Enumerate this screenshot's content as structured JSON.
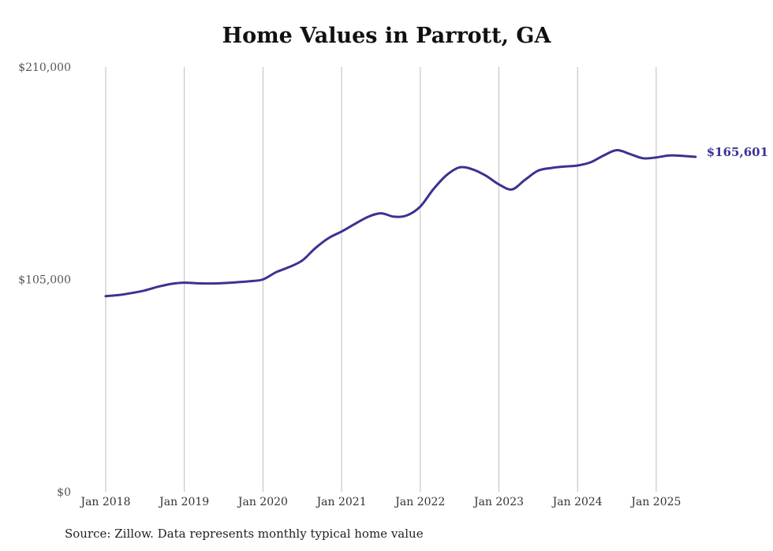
{
  "chart_data": {
    "type": "line",
    "title": "Home Values in Parrott, GA",
    "xlabel": "",
    "ylabel": "",
    "ylim": [
      0,
      210000
    ],
    "y_ticks": [
      {
        "value": 0,
        "label": "$0"
      },
      {
        "value": 105000,
        "label": "$105,000"
      },
      {
        "value": 210000,
        "label": "$210,000"
      }
    ],
    "x_ticks": [
      "Jan 2018",
      "Jan 2019",
      "Jan 2020",
      "Jan 2021",
      "Jan 2022",
      "Jan 2023",
      "Jan 2024",
      "Jan 2025"
    ],
    "grid": "vertical",
    "series": [
      {
        "color": "#3a3391",
        "x": [
          "2018-01",
          "2018-03",
          "2018-05",
          "2018-07",
          "2018-09",
          "2018-11",
          "2019-01",
          "2019-03",
          "2019-05",
          "2019-07",
          "2019-09",
          "2019-11",
          "2020-01",
          "2020-03",
          "2020-05",
          "2020-07",
          "2020-09",
          "2020-11",
          "2021-01",
          "2021-03",
          "2021-05",
          "2021-07",
          "2021-09",
          "2021-11",
          "2022-01",
          "2022-03",
          "2022-05",
          "2022-07",
          "2022-09",
          "2022-11",
          "2023-01",
          "2023-03",
          "2023-05",
          "2023-07",
          "2023-09",
          "2023-11",
          "2024-01",
          "2024-03",
          "2024-05",
          "2024-07",
          "2024-09",
          "2024-11",
          "2025-01",
          "2025-03",
          "2025-05",
          "2025-07"
        ],
        "values": [
          96700,
          97300,
          98300,
          99600,
          101400,
          102800,
          103400,
          103100,
          103000,
          103200,
          103600,
          104100,
          105000,
          108600,
          111100,
          114400,
          120500,
          125400,
          128700,
          132400,
          135900,
          137700,
          136000,
          136700,
          141000,
          149600,
          156500,
          160400,
          159400,
          156300,
          152000,
          149500,
          154300,
          158800,
          160100,
          160800,
          161300,
          162900,
          166300,
          168900,
          167000,
          164900,
          165300,
          166300,
          166100,
          165601
        ]
      }
    ],
    "end_label": "$165,601"
  },
  "source_note": "Source: Zillow. Data represents monthly typical home value"
}
